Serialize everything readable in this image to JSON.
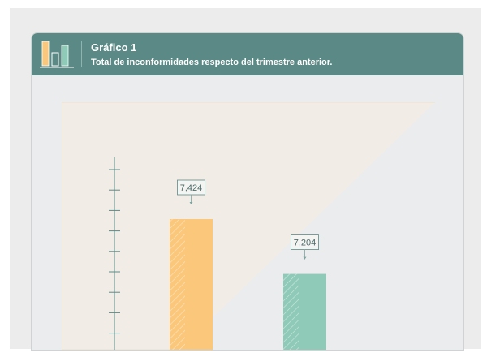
{
  "header": {
    "title": "Gráfico 1",
    "subtitle": "Total de inconformidades respecto del trimestre anterior."
  },
  "colors": {
    "header_bg": "#5b8a86",
    "bar_current": "#fbc77b",
    "bar_previous": "#8ecab7",
    "axis": "#5b8a86"
  },
  "chart_data": {
    "type": "bar",
    "categories": [
      "",
      ""
    ],
    "values": [
      7424,
      7204
    ],
    "data_labels": [
      "7,424",
      "7,204"
    ],
    "colors": [
      "#fbc77b",
      "#8ecab7"
    ],
    "title": "Gráfico 1",
    "subtitle": "Total de inconformidades respecto del trimestre anterior.",
    "xlabel": "",
    "ylabel": "",
    "grid": false,
    "y_ticks_unlabeled": true
  }
}
